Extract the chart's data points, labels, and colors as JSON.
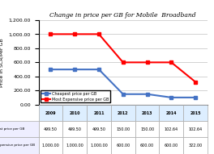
{
  "title": "Change in price per GB for Mobile  Broadband",
  "ylabel": "Price in SCR/Per GB",
  "years": [
    2009,
    2010,
    2011,
    2012,
    2013,
    2014,
    2015
  ],
  "cheapest": [
    499.5,
    499.5,
    499.5,
    150.0,
    150.0,
    102.64,
    102.64
  ],
  "most_expensive": [
    1000.0,
    1000.0,
    1000.0,
    600.0,
    600.0,
    600.0,
    322.0
  ],
  "cheapest_color": "#4472C4",
  "expensive_color": "#FF0000",
  "cheapest_label": "Cheapest price per GB",
  "expensive_label": "Most Expensive price per GB",
  "ylim": [
    0,
    1200
  ],
  "yticks": [
    0,
    200,
    400,
    600,
    800,
    1000,
    1200
  ],
  "grid_color": "#C0C0C0",
  "table_rows": [
    [
      "499.50",
      "499.50",
      "499.50",
      "150.00",
      "150.00",
      "102.64",
      "102.64"
    ],
    [
      "1,000.00",
      "1,000.00",
      "1,000.00",
      "600.00",
      "600.00",
      "600.00",
      "322.00"
    ]
  ],
  "table_row_labels": [
    "Cheapest price per GB",
    "Most Expensive price per GB"
  ]
}
